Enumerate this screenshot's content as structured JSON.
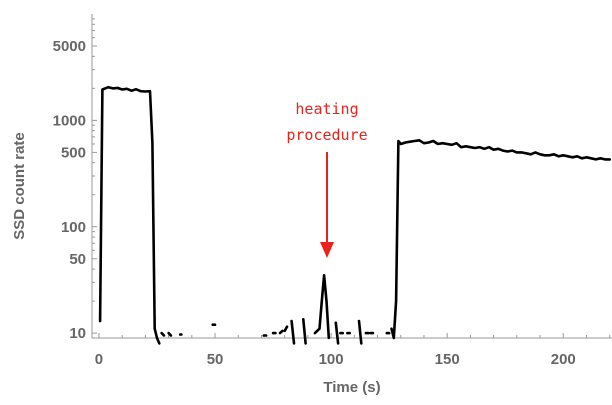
{
  "chart_data": {
    "type": "line",
    "xlabel": "Time (s)",
    "ylabel": "SSD count rate",
    "xlim": [
      -3,
      221
    ],
    "ylim": [
      9,
      10000
    ],
    "yscale": "log",
    "grid": false,
    "x_ticks": [
      0,
      50,
      100,
      150,
      200
    ],
    "y_ticks": [
      10,
      50,
      100,
      500,
      1000,
      5000
    ],
    "annotation": {
      "lines": [
        "heating",
        "procedure"
      ],
      "x": 98,
      "y": 35,
      "color": "#e8231c"
    },
    "series": [
      {
        "color": "#000000",
        "segments": [
          [
            [
              0.5,
              13
            ],
            [
              1.5,
              1950
            ],
            [
              4,
              2050
            ],
            [
              6,
              2000
            ],
            [
              8,
              2020
            ],
            [
              10,
              1950
            ],
            [
              12,
              1980
            ],
            [
              14,
              1900
            ],
            [
              16,
              1960
            ],
            [
              18,
              1880
            ],
            [
              20,
              1870
            ],
            [
              22,
              1880
            ],
            [
              23,
              620
            ],
            [
              24,
              11
            ],
            [
              25,
              9
            ],
            [
              26,
              8
            ]
          ],
          [
            [
              27,
              10
            ],
            [
              28,
              9.5
            ]
          ],
          [
            [
              30,
              10
            ],
            [
              31,
              9.5
            ]
          ],
          [
            [
              35,
              9.7
            ],
            [
              35.5,
              9.7
            ]
          ],
          [
            [
              49,
              12
            ],
            [
              50,
              12
            ]
          ],
          [
            [
              71,
              9.5
            ],
            [
              72,
              9.5
            ]
          ],
          [
            [
              75,
              10
            ],
            [
              76,
              10
            ]
          ],
          [
            [
              78,
              10
            ],
            [
              79,
              10.5
            ]
          ],
          [
            [
              80,
              10.5
            ],
            [
              81,
              11.5
            ]
          ],
          [
            [
              83,
              13
            ],
            [
              84,
              8
            ]
          ],
          [
            [
              88,
              13.5
            ],
            [
              89,
              8
            ]
          ],
          [
            [
              93,
              10
            ],
            [
              95,
              11
            ],
            [
              96,
              20
            ],
            [
              97,
              35
            ],
            [
              98,
              20
            ],
            [
              99,
              9
            ]
          ],
          [
            [
              102,
              12.5
            ],
            [
              103,
              8
            ]
          ],
          [
            [
              104,
              10
            ],
            [
              105,
              10
            ]
          ],
          [
            [
              107,
              10
            ],
            [
              108,
              10
            ]
          ],
          [
            [
              112,
              13
            ],
            [
              113,
              8
            ]
          ],
          [
            [
              115,
              10
            ],
            [
              116,
              10
            ]
          ],
          [
            [
              117,
              10
            ],
            [
              118,
              10
            ]
          ],
          [
            [
              124,
              10
            ],
            [
              125,
              10
            ]
          ],
          [
            [
              126,
              11
            ],
            [
              127,
              9
            ],
            [
              128,
              20
            ],
            [
              129,
              640
            ],
            [
              130,
              600
            ],
            [
              132,
              620
            ],
            [
              134,
              630
            ],
            [
              136,
              640
            ],
            [
              138,
              650
            ],
            [
              140,
              610
            ],
            [
              142,
              620
            ],
            [
              144,
              640
            ],
            [
              146,
              600
            ],
            [
              148,
              610
            ],
            [
              150,
              600
            ],
            [
              152,
              590
            ],
            [
              154,
              610
            ],
            [
              156,
              560
            ],
            [
              158,
              570
            ],
            [
              160,
              560
            ],
            [
              162,
              550
            ],
            [
              164,
              560
            ],
            [
              166,
              540
            ],
            [
              168,
              560
            ],
            [
              170,
              530
            ],
            [
              172,
              540
            ],
            [
              174,
              520
            ],
            [
              176,
              510
            ],
            [
              178,
              520
            ],
            [
              180,
              500
            ],
            [
              182,
              500
            ],
            [
              184,
              490
            ],
            [
              186,
              480
            ],
            [
              188,
              500
            ],
            [
              190,
              480
            ],
            [
              192,
              470
            ],
            [
              194,
              470
            ],
            [
              196,
              480
            ],
            [
              198,
              460
            ],
            [
              200,
              470
            ],
            [
              202,
              460
            ],
            [
              204,
              450
            ],
            [
              206,
              460
            ],
            [
              208,
              440
            ],
            [
              210,
              450
            ],
            [
              212,
              440
            ],
            [
              214,
              430
            ],
            [
              216,
              440
            ],
            [
              218,
              430
            ],
            [
              220,
              430
            ]
          ]
        ]
      }
    ]
  }
}
